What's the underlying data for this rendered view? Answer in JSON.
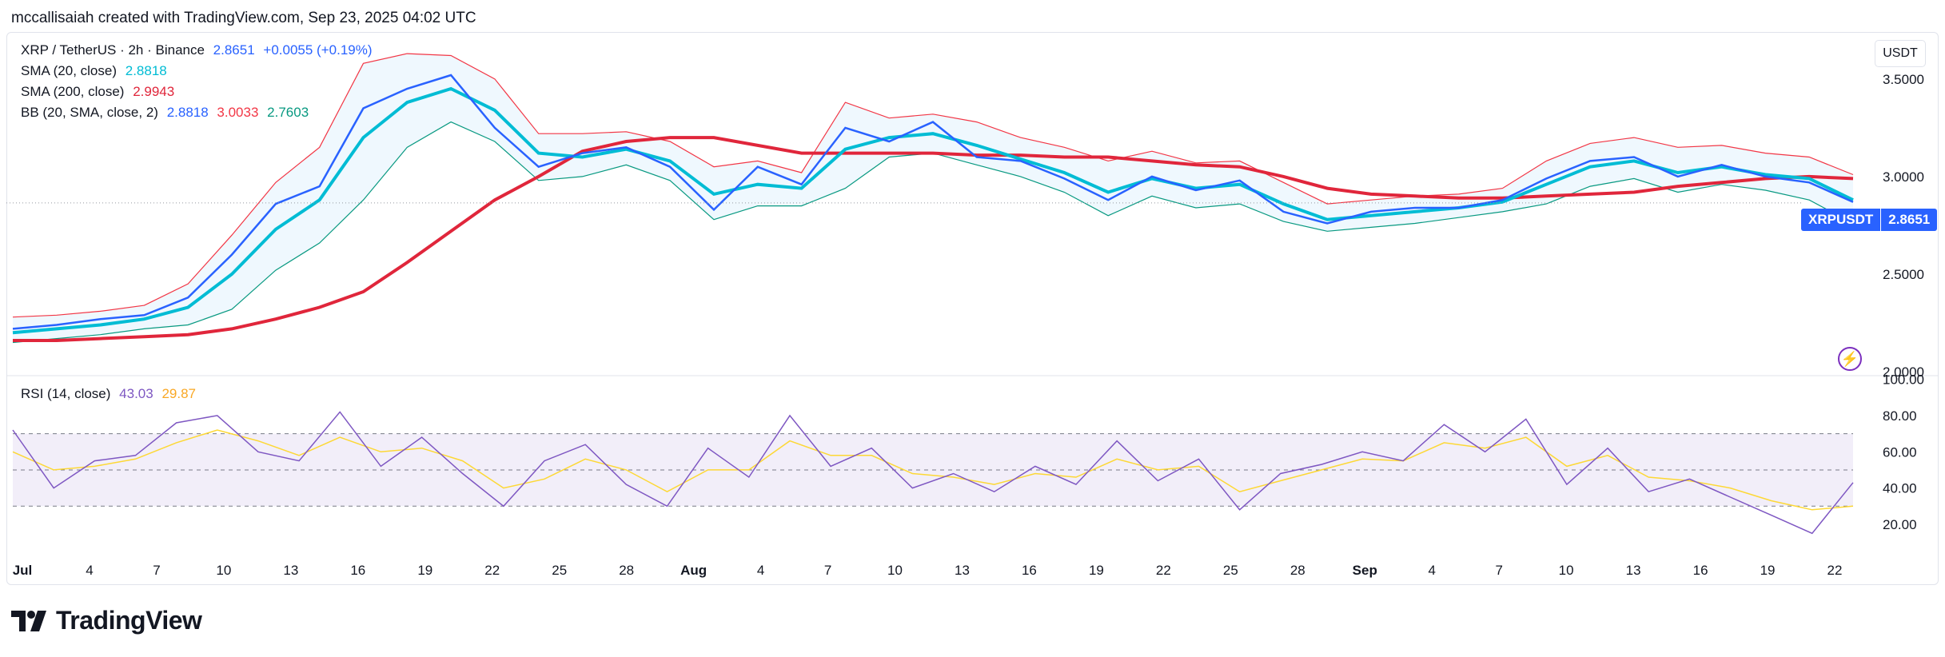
{
  "header": {
    "attribution": "mccallisaiah created with TradingView.com, Sep 23, 2025 04:02 UTC"
  },
  "main_legend": {
    "symbol": "XRP / TetherUS · 2h · Binance",
    "last": "2.8651",
    "change": "+0.0055 (+0.19%)",
    "sma20_label": "SMA (20, close)",
    "sma20_value": "2.8818",
    "sma200_label": "SMA (200, close)",
    "sma200_value": "2.9943",
    "bb_label": "BB (20, SMA, close, 2)",
    "bb_basis": "2.8818",
    "bb_upper": "3.0033",
    "bb_lower": "2.7603"
  },
  "rsi_legend": {
    "label": "RSI (14, close)",
    "rsi_value": "43.03",
    "ma_value": "29.87"
  },
  "currency_button": "USDT",
  "price_tag": {
    "symbol": "XRPUSDT",
    "value": "2.8651"
  },
  "brand": {
    "name": "TradingView"
  },
  "colors": {
    "price": "#2962ff",
    "sma20": "#00bcd4",
    "sma200": "#e0263b",
    "bb": "#f23645",
    "bb_lower": "#089981",
    "rsi": "#7e57c2",
    "rsi_ma": "#fdd835"
  },
  "chart_data": [
    {
      "type": "line",
      "title": "XRP / TetherUS · 2h · Binance",
      "x": [
        "Jul 1",
        "Jul 3",
        "Jul 5",
        "Jul 7",
        "Jul 9",
        "Jul 11",
        "Jul 13",
        "Jul 15",
        "Jul 17",
        "Jul 19",
        "Jul 21",
        "Jul 23",
        "Jul 25",
        "Jul 27",
        "Jul 29",
        "Jul 31",
        "Aug 2",
        "Aug 4",
        "Aug 6",
        "Aug 8",
        "Aug 10",
        "Aug 12",
        "Aug 14",
        "Aug 16",
        "Aug 18",
        "Aug 20",
        "Aug 22",
        "Aug 24",
        "Aug 26",
        "Aug 28",
        "Aug 30",
        "Sep 1",
        "Sep 3",
        "Sep 5",
        "Sep 7",
        "Sep 9",
        "Sep 11",
        "Sep 13",
        "Sep 15",
        "Sep 17",
        "Sep 19",
        "Sep 21",
        "Sep 23"
      ],
      "y_axis": {
        "ticks": [
          "2.0000",
          "2.5000",
          "3.0000",
          "3.5000"
        ],
        "ylim": [
          1.98,
          3.7
        ],
        "label": "USDT"
      },
      "x_ticks": [
        "Jul",
        "4",
        "7",
        "10",
        "13",
        "16",
        "19",
        "22",
        "25",
        "28",
        "Aug",
        "4",
        "7",
        "10",
        "13",
        "16",
        "19",
        "22",
        "25",
        "28",
        "Sep",
        "4",
        "7",
        "10",
        "13",
        "16",
        "19",
        "22"
      ],
      "series": [
        {
          "name": "XRPUSDT",
          "values": [
            2.22,
            2.24,
            2.27,
            2.29,
            2.38,
            2.6,
            2.86,
            2.95,
            3.35,
            3.45,
            3.52,
            3.25,
            3.05,
            3.12,
            3.15,
            3.05,
            2.83,
            3.05,
            2.96,
            3.25,
            3.18,
            3.28,
            3.1,
            3.08,
            2.99,
            2.88,
            3.0,
            2.93,
            2.98,
            2.82,
            2.76,
            2.82,
            2.84,
            2.84,
            2.88,
            2.99,
            3.08,
            3.1,
            3.0,
            3.06,
            3.0,
            2.97,
            2.87
          ]
        },
        {
          "name": "SMA (20, close)",
          "values": [
            2.2,
            2.22,
            2.24,
            2.27,
            2.33,
            2.5,
            2.73,
            2.88,
            3.2,
            3.38,
            3.45,
            3.34,
            3.12,
            3.1,
            3.14,
            3.08,
            2.91,
            2.96,
            2.94,
            3.14,
            3.2,
            3.22,
            3.16,
            3.09,
            3.02,
            2.92,
            2.99,
            2.94,
            2.96,
            2.86,
            2.78,
            2.8,
            2.82,
            2.84,
            2.87,
            2.96,
            3.05,
            3.08,
            3.02,
            3.05,
            3.01,
            2.99,
            2.88
          ]
        },
        {
          "name": "SMA (200, close)",
          "values": [
            2.16,
            2.16,
            2.17,
            2.18,
            2.19,
            2.22,
            2.27,
            2.33,
            2.41,
            2.56,
            2.72,
            2.88,
            3.0,
            3.13,
            3.18,
            3.2,
            3.2,
            3.16,
            3.12,
            3.12,
            3.12,
            3.12,
            3.11,
            3.11,
            3.1,
            3.1,
            3.08,
            3.06,
            3.05,
            3.0,
            2.94,
            2.91,
            2.9,
            2.89,
            2.89,
            2.9,
            2.91,
            2.92,
            2.95,
            2.97,
            2.99,
            3.0,
            2.99
          ]
        },
        {
          "name": "BB upper",
          "values": [
            2.28,
            2.29,
            2.31,
            2.34,
            2.45,
            2.7,
            2.97,
            3.15,
            3.58,
            3.63,
            3.62,
            3.5,
            3.22,
            3.22,
            3.23,
            3.18,
            3.05,
            3.08,
            3.02,
            3.38,
            3.3,
            3.32,
            3.28,
            3.2,
            3.15,
            3.08,
            3.13,
            3.07,
            3.08,
            2.97,
            2.86,
            2.88,
            2.9,
            2.91,
            2.94,
            3.08,
            3.17,
            3.2,
            3.15,
            3.16,
            3.12,
            3.1,
            3.01
          ]
        },
        {
          "name": "BB lower",
          "values": [
            2.15,
            2.17,
            2.19,
            2.22,
            2.24,
            2.32,
            2.52,
            2.66,
            2.88,
            3.15,
            3.28,
            3.18,
            2.98,
            3.0,
            3.06,
            2.98,
            2.78,
            2.85,
            2.85,
            2.94,
            3.1,
            3.12,
            3.06,
            3.0,
            2.92,
            2.8,
            2.9,
            2.84,
            2.86,
            2.77,
            2.72,
            2.74,
            2.76,
            2.79,
            2.82,
            2.86,
            2.95,
            2.99,
            2.92,
            2.96,
            2.93,
            2.88,
            2.76
          ]
        }
      ]
    },
    {
      "type": "line",
      "title": "RSI (14, close)",
      "y_axis": {
        "ticks": [
          "20.00",
          "40.00",
          "60.00",
          "80.00",
          "100.00"
        ],
        "ylim": [
          5,
          102
        ]
      },
      "bands": {
        "upper": 70,
        "middle": 50,
        "lower": 30
      },
      "series": [
        {
          "name": "RSI",
          "values": [
            72,
            40,
            55,
            58,
            76,
            80,
            60,
            55,
            82,
            52,
            68,
            48,
            30,
            55,
            64,
            42,
            30,
            62,
            46,
            80,
            52,
            62,
            40,
            48,
            38,
            52,
            42,
            66,
            44,
            56,
            28,
            48,
            53,
            60,
            55,
            75,
            60,
            78,
            42,
            62,
            38,
            45,
            35,
            25,
            15,
            43
          ]
        },
        {
          "name": "RSI-based MA",
          "values": [
            60,
            50,
            52,
            56,
            65,
            72,
            66,
            58,
            68,
            60,
            62,
            55,
            40,
            45,
            56,
            50,
            38,
            50,
            50,
            66,
            58,
            58,
            48,
            46,
            42,
            48,
            46,
            56,
            50,
            52,
            38,
            44,
            50,
            56,
            55,
            65,
            62,
            68,
            52,
            58,
            46,
            44,
            40,
            33,
            28,
            30
          ]
        }
      ]
    }
  ]
}
